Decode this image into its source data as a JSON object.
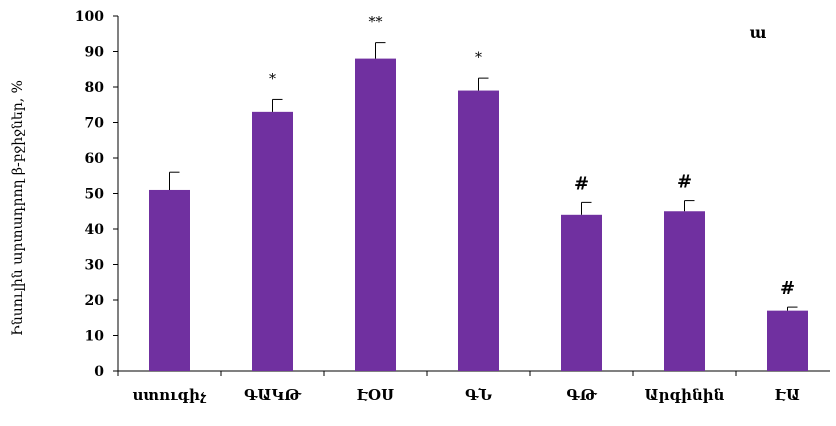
{
  "chart_data": {
    "type": "bar",
    "title": "",
    "panel_label": "ա",
    "ylabel": "Ինսուլին արտադրող β-բջիջներ, %",
    "xlabel": "",
    "ylim": [
      0,
      100
    ],
    "yticks": [
      0,
      10,
      20,
      30,
      40,
      50,
      60,
      70,
      80,
      90,
      100
    ],
    "grid": false,
    "bar_color": "#7030a0",
    "categories": [
      "ստուգիչ",
      "ԳԱԿԹ",
      "ԷՕՍ",
      "ԳՆ",
      "ԳԹ",
      "Արգինին",
      "ԷԱ"
    ],
    "values": [
      51,
      73,
      88,
      79,
      44,
      45,
      17
    ],
    "errors": [
      5,
      3.5,
      4.5,
      3.5,
      3.5,
      3,
      1
    ],
    "annotations": [
      "",
      "*",
      "**",
      "*",
      "#",
      "#",
      "#"
    ]
  }
}
